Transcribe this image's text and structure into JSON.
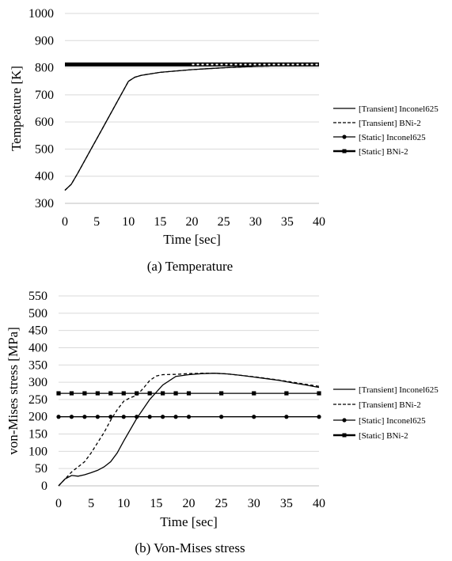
{
  "chart_data": [
    {
      "type": "line",
      "caption": "(a) Temperature",
      "xlabel": "Time [sec]",
      "ylabel": "Tempeature [K]",
      "xlim": [
        0,
        40
      ],
      "ylim": [
        300,
        1000
      ],
      "xticks": [
        0,
        5,
        10,
        15,
        20,
        25,
        30,
        35,
        40
      ],
      "yticks": [
        300,
        400,
        500,
        600,
        700,
        800,
        900,
        1000
      ],
      "grid": "horizontal",
      "legend_position": "right",
      "series": [
        {
          "name": "[Transient] Inconel625",
          "style": "solid",
          "x": [
            0,
            1,
            2,
            4,
            6,
            8,
            10,
            11,
            12,
            15,
            20,
            25,
            30,
            35,
            40
          ],
          "y": [
            348,
            370,
            410,
            495,
            580,
            665,
            750,
            765,
            772,
            783,
            793,
            800,
            805,
            808,
            810
          ]
        },
        {
          "name": "[Transient] BNi-2",
          "style": "dashed",
          "x": [
            0,
            1,
            2,
            4,
            6,
            8,
            10,
            11,
            12,
            15,
            20,
            25,
            30,
            35,
            40
          ],
          "y": [
            348,
            370,
            410,
            495,
            580,
            665,
            750,
            765,
            772,
            783,
            793,
            800,
            805,
            808,
            810
          ]
        },
        {
          "name": "[Static] Inconel625",
          "style": "solid-circle",
          "x": [
            0,
            20
          ],
          "y": [
            812,
            812
          ]
        },
        {
          "name": "[Static] BNi-2",
          "style": "solid-square",
          "x": [
            0,
            20,
            40
          ],
          "y": [
            812,
            812,
            812
          ]
        }
      ]
    },
    {
      "type": "line",
      "caption": "(b) Von-Mises stress",
      "xlabel": "Time [sec]",
      "ylabel": "von-Mises stress [MPa]",
      "xlim": [
        0,
        40
      ],
      "ylim": [
        0,
        550
      ],
      "xticks": [
        0,
        5,
        10,
        15,
        20,
        25,
        30,
        35,
        40
      ],
      "yticks": [
        0,
        50,
        100,
        150,
        200,
        250,
        300,
        350,
        400,
        450,
        500,
        550
      ],
      "grid": "horizontal",
      "legend_position": "right",
      "series": [
        {
          "name": "[Transient] Inconel625",
          "style": "solid",
          "x": [
            0,
            1,
            2,
            3,
            4,
            5,
            6,
            7,
            8,
            9,
            10,
            12,
            14,
            16,
            18,
            20,
            22,
            24,
            26,
            28,
            30,
            32,
            34,
            36,
            38,
            40
          ],
          "y": [
            0,
            20,
            30,
            28,
            32,
            38,
            45,
            55,
            70,
            95,
            130,
            195,
            250,
            292,
            317,
            322,
            325,
            326,
            324,
            320,
            315,
            310,
            305,
            298,
            292,
            285
          ]
        },
        {
          "name": "[Transient] BNi-2",
          "style": "dashed",
          "x": [
            0,
            1,
            2,
            3,
            4,
            5,
            6,
            7,
            8,
            9,
            10,
            11,
            12,
            13,
            14,
            15,
            16,
            18,
            20,
            22,
            24,
            26,
            28,
            30,
            32,
            34,
            36,
            38,
            40
          ],
          "y": [
            0,
            20,
            40,
            55,
            70,
            95,
            125,
            155,
            190,
            220,
            245,
            255,
            262,
            282,
            305,
            318,
            322,
            323,
            325,
            326,
            326,
            324,
            320,
            316,
            311,
            306,
            300,
            294,
            288
          ]
        },
        {
          "name": "[Static] Inconel625",
          "style": "solid-circle",
          "x": [
            0,
            2,
            4,
            6,
            8,
            10,
            12,
            14,
            16,
            18,
            20,
            25,
            30,
            35,
            40
          ],
          "y": [
            200,
            200,
            200,
            200,
            200,
            200,
            200,
            200,
            200,
            200,
            200,
            200,
            200,
            200,
            200
          ]
        },
        {
          "name": "[Static] BNi-2",
          "style": "solid-square",
          "x": [
            0,
            2,
            4,
            6,
            8,
            10,
            12,
            14,
            16,
            18,
            20,
            25,
            30,
            35,
            40
          ],
          "y": [
            268,
            268,
            268,
            268,
            268,
            268,
            268,
            268,
            268,
            268,
            268,
            268,
            268,
            268,
            268
          ]
        }
      ]
    }
  ]
}
